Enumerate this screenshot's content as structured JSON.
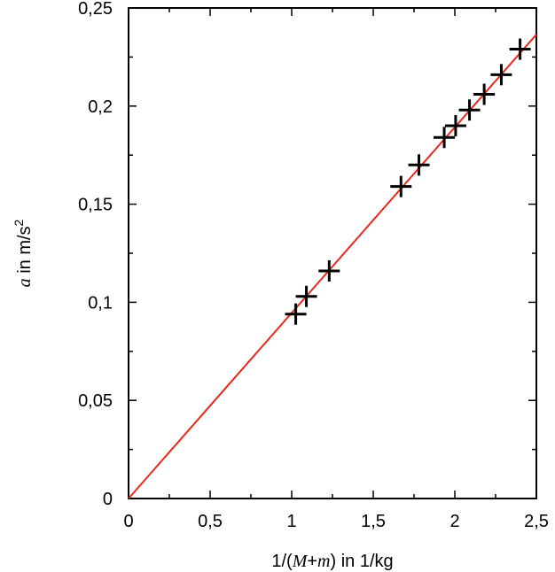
{
  "chart_data": {
    "type": "scatter",
    "title": "",
    "xlabel": {
      "prefix": "1/(",
      "var1": "M",
      "plus": "+",
      "var2": "m",
      "suffix": ") in 1/kg"
    },
    "ylabel": {
      "var": "a",
      "text": " in m/s",
      "sup": "2"
    },
    "xlim": [
      0,
      2.5
    ],
    "ylim": [
      0,
      0.25
    ],
    "xticks": [
      {
        "value": 0,
        "label": "0"
      },
      {
        "value": 0.5,
        "label": "0,5"
      },
      {
        "value": 1,
        "label": "1"
      },
      {
        "value": 1.5,
        "label": "1,5"
      },
      {
        "value": 2,
        "label": "2"
      },
      {
        "value": 2.5,
        "label": "2,5"
      }
    ],
    "yticks": [
      {
        "value": 0,
        "label": "0"
      },
      {
        "value": 0.05,
        "label": "0,05"
      },
      {
        "value": 0.1,
        "label": "0,1"
      },
      {
        "value": 0.15,
        "label": "0,15"
      },
      {
        "value": 0.2,
        "label": "0,2"
      },
      {
        "value": 0.25,
        "label": "0,25"
      }
    ],
    "grid": false,
    "marker": "plus",
    "marker_color": "#000000",
    "points": [
      {
        "x": 1.025,
        "y": 0.094
      },
      {
        "x": 1.09,
        "y": 0.103
      },
      {
        "x": 1.23,
        "y": 0.116
      },
      {
        "x": 1.67,
        "y": 0.159
      },
      {
        "x": 1.78,
        "y": 0.17
      },
      {
        "x": 1.935,
        "y": 0.184
      },
      {
        "x": 2.005,
        "y": 0.19
      },
      {
        "x": 2.09,
        "y": 0.198
      },
      {
        "x": 2.18,
        "y": 0.206
      },
      {
        "x": 2.285,
        "y": 0.216
      },
      {
        "x": 2.4,
        "y": 0.229
      }
    ],
    "fit_line": {
      "color": "#e8291c",
      "x": [
        0,
        2.5
      ],
      "y": [
        0,
        0.2365
      ]
    }
  }
}
